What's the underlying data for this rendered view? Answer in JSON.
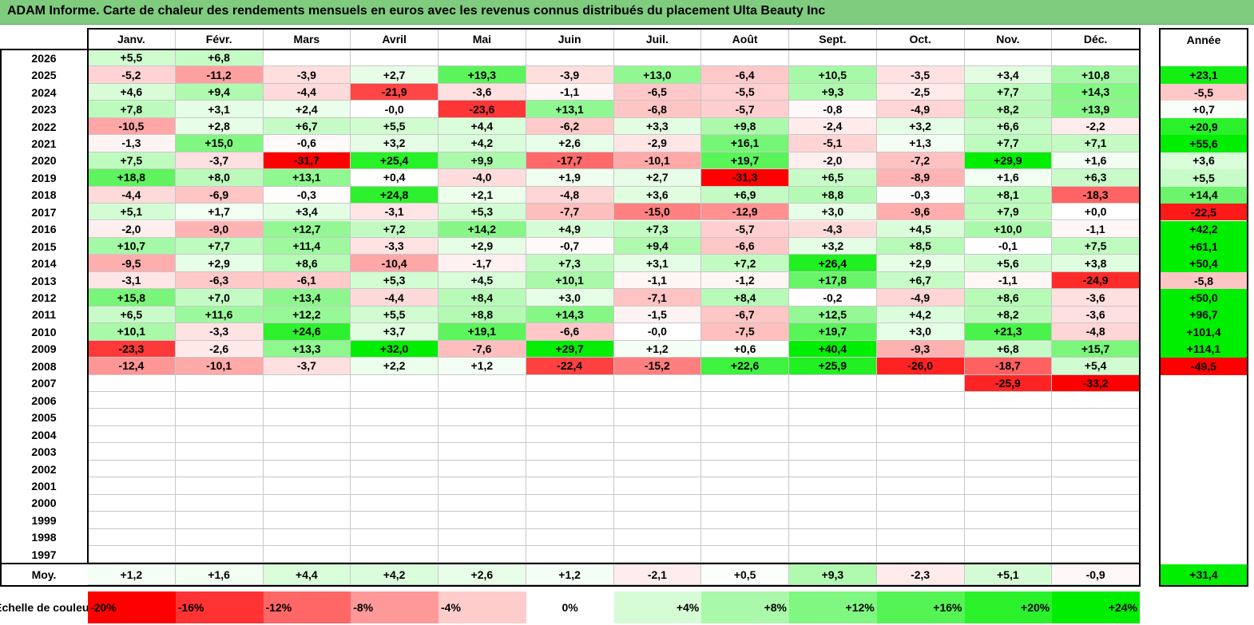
{
  "title": "ADAM Informe. Carte de chaleur des rendements mensuels en euros avec les revenus connus distribués du placement Ulta Beauty Inc",
  "chart_data": {
    "type": "heatmap",
    "title": "ADAM Informe. Carte de chaleur des rendements mensuels en euros avec les revenus connus distribués du placement Ulta Beauty Inc",
    "months": [
      "Janv.",
      "Févr.",
      "Mars",
      "Avril",
      "Mai",
      "Juin",
      "Juil.",
      "Août",
      "Sept.",
      "Oct.",
      "Nov.",
      "Déc."
    ],
    "year_header": "Année",
    "rows": [
      {
        "year": "2026",
        "months": [
          "+5,5",
          "+6,8",
          "",
          "",
          "",
          "",
          "",
          "",
          "",
          "",
          "",
          ""
        ],
        "year_value": ""
      },
      {
        "year": "2025",
        "months": [
          "-5,2",
          "-11,2",
          "-3,9",
          "+2,7",
          "+19,3",
          "-3,9",
          "+13,0",
          "-6,4",
          "+10,5",
          "-3,5",
          "+3,4",
          "+10,8"
        ],
        "year_value": "+23,1"
      },
      {
        "year": "2024",
        "months": [
          "+4,6",
          "+9,4",
          "-4,4",
          "-21,9",
          "-3,6",
          "-1,1",
          "-6,5",
          "-5,5",
          "+9,3",
          "-2,5",
          "+7,7",
          "+14,3"
        ],
        "year_value": "-5,5"
      },
      {
        "year": "2023",
        "months": [
          "+7,8",
          "+3,1",
          "+2,4",
          "-0,0",
          "-23,6",
          "+13,1",
          "-6,8",
          "-5,7",
          "-0,8",
          "-4,9",
          "+8,2",
          "+13,9"
        ],
        "year_value": "+0,7"
      },
      {
        "year": "2022",
        "months": [
          "-10,5",
          "+2,8",
          "+6,7",
          "+5,5",
          "+4,4",
          "-6,2",
          "+3,3",
          "+9,8",
          "-2,4",
          "+3,2",
          "+6,6",
          "-2,2"
        ],
        "year_value": "+20,9"
      },
      {
        "year": "2021",
        "months": [
          "-1,3",
          "+15,0",
          "-0,6",
          "+3,2",
          "+4,2",
          "+2,6",
          "-2,9",
          "+16,1",
          "-5,1",
          "+1,3",
          "+7,7",
          "+7,1"
        ],
        "year_value": "+55,6"
      },
      {
        "year": "2020",
        "months": [
          "+7,5",
          "-3,7",
          "-31,7",
          "+25,4",
          "+9,9",
          "-17,7",
          "-10,1",
          "+19,7",
          "-2,0",
          "-7,2",
          "+29,9",
          "+1,6"
        ],
        "year_value": "+3,6"
      },
      {
        "year": "2019",
        "months": [
          "+18,8",
          "+8,0",
          "+13,1",
          "+0,4",
          "-4,0",
          "+1,9",
          "+2,7",
          "-31,3",
          "+6,5",
          "-8,9",
          "+1,6",
          "+6,3"
        ],
        "year_value": "+5,5"
      },
      {
        "year": "2018",
        "months": [
          "-4,4",
          "-6,9",
          "-0,3",
          "+24,8",
          "+2,1",
          "-4,8",
          "+3,6",
          "+6,9",
          "+8,8",
          "-0,3",
          "+8,1",
          "-18,3"
        ],
        "year_value": "+14,4"
      },
      {
        "year": "2017",
        "months": [
          "+5,1",
          "+1,7",
          "+3,4",
          "-3,1",
          "+5,3",
          "-7,7",
          "-15,0",
          "-12,9",
          "+3,0",
          "-9,6",
          "+7,9",
          "+0,0"
        ],
        "year_value": "-22,5"
      },
      {
        "year": "2016",
        "months": [
          "-2,0",
          "-9,0",
          "+12,7",
          "+7,2",
          "+14,2",
          "+4,9",
          "+7,3",
          "-5,7",
          "-4,3",
          "+4,5",
          "+10,0",
          "-1,1"
        ],
        "year_value": "+42,2"
      },
      {
        "year": "2015",
        "months": [
          "+10,7",
          "+7,7",
          "+11,4",
          "-3,3",
          "+2,9",
          "-0,7",
          "+9,4",
          "-6,6",
          "+3,2",
          "+8,5",
          "-0,1",
          "+7,5"
        ],
        "year_value": "+61,1"
      },
      {
        "year": "2014",
        "months": [
          "-9,5",
          "+2,9",
          "+8,6",
          "-10,4",
          "-1,7",
          "+7,3",
          "+3,1",
          "+7,2",
          "+26,4",
          "+2,9",
          "+5,6",
          "+3,8"
        ],
        "year_value": "+50,4"
      },
      {
        "year": "2013",
        "months": [
          "-3,1",
          "-6,3",
          "-6,1",
          "+5,3",
          "+4,5",
          "+10,1",
          "-1,1",
          "-1,2",
          "+17,8",
          "+6,7",
          "-1,1",
          "-24,9"
        ],
        "year_value": "-5,8"
      },
      {
        "year": "2012",
        "months": [
          "+15,8",
          "+7,0",
          "+13,4",
          "-4,4",
          "+8,4",
          "+3,0",
          "-7,1",
          "+8,4",
          "-0,2",
          "-4,9",
          "+8,6",
          "-3,6"
        ],
        "year_value": "+50,0"
      },
      {
        "year": "2011",
        "months": [
          "+6,5",
          "+11,6",
          "+12,2",
          "+5,5",
          "+8,8",
          "+14,3",
          "-1,5",
          "-6,7",
          "+12,5",
          "+4,2",
          "+8,2",
          "-3,6"
        ],
        "year_value": "+96,7"
      },
      {
        "year": "2010",
        "months": [
          "+10,1",
          "-3,3",
          "+24,6",
          "+3,7",
          "+19,1",
          "-6,6",
          "-0,0",
          "-7,5",
          "+19,7",
          "+3,0",
          "+21,3",
          "-4,8"
        ],
        "year_value": "+101,4"
      },
      {
        "year": "2009",
        "months": [
          "-23,3",
          "-2,6",
          "+13,3",
          "+32,0",
          "-7,6",
          "+29,7",
          "+1,2",
          "+0,6",
          "+40,4",
          "-9,3",
          "+6,8",
          "+15,7"
        ],
        "year_value": "+114,1"
      },
      {
        "year": "2008",
        "months": [
          "-12,4",
          "-10,1",
          "-3,7",
          "+2,2",
          "+1,2",
          "-22,4",
          "-15,2",
          "+22,6",
          "+25,9",
          "-26,0",
          "-18,7",
          "+5,4"
        ],
        "year_value": "-49,5"
      },
      {
        "year": "2007",
        "months": [
          "",
          "",
          "",
          "",
          "",
          "",
          "",
          "",
          "",
          "",
          "-25,9",
          "-33,2"
        ],
        "year_value": ""
      },
      {
        "year": "2006",
        "months": [
          "",
          "",
          "",
          "",
          "",
          "",
          "",
          "",
          "",
          "",
          "",
          ""
        ],
        "year_value": ""
      },
      {
        "year": "2005",
        "months": [
          "",
          "",
          "",
          "",
          "",
          "",
          "",
          "",
          "",
          "",
          "",
          ""
        ],
        "year_value": ""
      },
      {
        "year": "2004",
        "months": [
          "",
          "",
          "",
          "",
          "",
          "",
          "",
          "",
          "",
          "",
          "",
          ""
        ],
        "year_value": ""
      },
      {
        "year": "2003",
        "months": [
          "",
          "",
          "",
          "",
          "",
          "",
          "",
          "",
          "",
          "",
          "",
          ""
        ],
        "year_value": ""
      },
      {
        "year": "2002",
        "months": [
          "",
          "",
          "",
          "",
          "",
          "",
          "",
          "",
          "",
          "",
          "",
          ""
        ],
        "year_value": ""
      },
      {
        "year": "2001",
        "months": [
          "",
          "",
          "",
          "",
          "",
          "",
          "",
          "",
          "",
          "",
          "",
          ""
        ],
        "year_value": ""
      },
      {
        "year": "2000",
        "months": [
          "",
          "",
          "",
          "",
          "",
          "",
          "",
          "",
          "",
          "",
          "",
          ""
        ],
        "year_value": ""
      },
      {
        "year": "1999",
        "months": [
          "",
          "",
          "",
          "",
          "",
          "",
          "",
          "",
          "",
          "",
          "",
          ""
        ],
        "year_value": ""
      },
      {
        "year": "1998",
        "months": [
          "",
          "",
          "",
          "",
          "",
          "",
          "",
          "",
          "",
          "",
          "",
          ""
        ],
        "year_value": ""
      },
      {
        "year": "1997",
        "months": [
          "",
          "",
          "",
          "",
          "",
          "",
          "",
          "",
          "",
          "",
          "",
          ""
        ],
        "year_value": ""
      }
    ],
    "average": {
      "label": "Moy.",
      "months": [
        "+1,2",
        "+1,6",
        "+4,4",
        "+4,2",
        "+2,6",
        "+1,2",
        "-2,1",
        "+0,5",
        "+9,3",
        "-2,3",
        "+5,1",
        "-0,9"
      ],
      "year_value": "+31,4"
    },
    "color_scale": {
      "label": "Echelle de couleur",
      "stops": [
        "-20%",
        "-16%",
        "-12%",
        "-8%",
        "-4%",
        "0%",
        "+4%",
        "+8%",
        "+12%",
        "+16%",
        "+20%",
        "+24%"
      ]
    }
  },
  "colors": {
    "title_bg": "#7fcc7f",
    "negative_max": "#ff0000",
    "neutral": "#ffffff",
    "positive_max": "#00ee00"
  }
}
